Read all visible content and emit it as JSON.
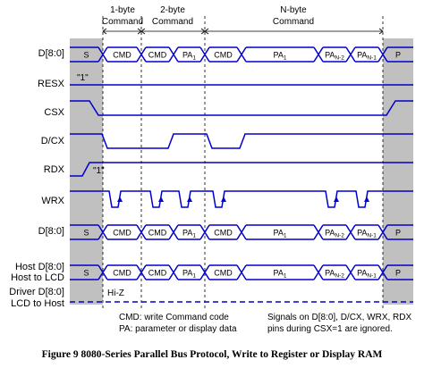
{
  "headers": {
    "one_byte": [
      "1-byte",
      "Command"
    ],
    "two_byte": [
      "2-byte",
      "Command"
    ],
    "n_byte": [
      "N-byte",
      "Command"
    ]
  },
  "signals": {
    "d80": "D[8:0]",
    "resx": "RESX",
    "resx_note": "\"1\"",
    "csx": "CSX",
    "dcx": "D/CX",
    "rdx": "RDX",
    "rdx_note": "\"1\"",
    "wrx": "WRX",
    "d80b": "D[8:0]",
    "host": [
      "Host D[8:0]",
      "Host to LCD"
    ],
    "driver": [
      "Driver D[8:0]",
      "LCD to Host"
    ],
    "hiz": "Hi-Z"
  },
  "cells": {
    "s": "S",
    "cmd": "CMD",
    "pa1": "PA",
    "pa1_sub": "1",
    "pan2": "PA",
    "pan2_sub": "N-2",
    "pan1": "PA",
    "pan1_sub": "N-1",
    "p": "P"
  },
  "notes": {
    "left": [
      "CMD: write Command code",
      "PA: parameter or display data"
    ],
    "right": [
      "Signals on D[8:0], D/CX, WRX, RDX",
      "pins during CSX=1 are ignored."
    ]
  },
  "caption": "Figure 9 8080-Series Parallel Bus Protocol, Write to Register or Display RAM",
  "colors": {
    "signal": "#0000cc",
    "gray": "#c0c0c0",
    "black": "#000000"
  }
}
